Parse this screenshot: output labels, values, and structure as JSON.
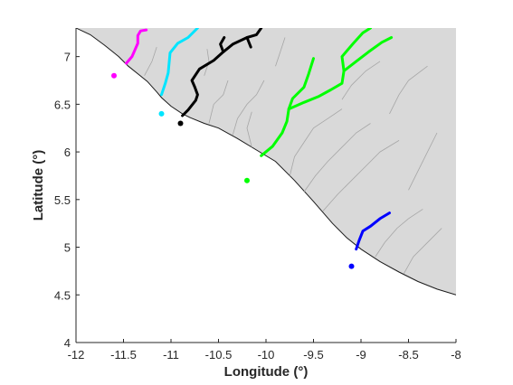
{
  "axes": {
    "xlabel": "Longitude (°)",
    "ylabel": "Latitude (°)",
    "xlim": [
      -12,
      -8
    ],
    "ylim": [
      4,
      7.3
    ],
    "xticks": [
      -12,
      -11.5,
      -11,
      -10.5,
      -10,
      -9.5,
      -9,
      -8.5,
      -8
    ],
    "xtick_labels": [
      "-12",
      "-11.5",
      "-11",
      "-10.5",
      "-10",
      "-9.5",
      "-9",
      "-8.5",
      "-8"
    ],
    "yticks": [
      4,
      4.5,
      5,
      5.5,
      6,
      6.5,
      7
    ],
    "ytick_labels": [
      "4",
      "4.5",
      "5",
      "5.5",
      "6",
      "6.5",
      "7"
    ]
  },
  "colors": {
    "land": "#d9d9d9",
    "coast": "#1a1a1a",
    "streams": "#a6a6a6",
    "magenta": "#ff00ff",
    "cyan": "#00e5ff",
    "black": "#000000",
    "green": "#00ff00",
    "blue": "#0000ff"
  },
  "chart_data": {
    "type": "map",
    "coastline": [
      [
        -12,
        7.3
      ],
      [
        -11.85,
        7.23
      ],
      [
        -11.7,
        7.12
      ],
      [
        -11.55,
        7.0
      ],
      [
        -11.45,
        6.9
      ],
      [
        -11.35,
        6.82
      ],
      [
        -11.25,
        6.74
      ],
      [
        -11.15,
        6.63
      ],
      [
        -11.1,
        6.57
      ],
      [
        -11.0,
        6.48
      ],
      [
        -10.88,
        6.4
      ],
      [
        -10.8,
        6.36
      ],
      [
        -10.65,
        6.3
      ],
      [
        -10.5,
        6.25
      ],
      [
        -10.3,
        6.14
      ],
      [
        -10.1,
        6.02
      ],
      [
        -9.9,
        5.9
      ],
      [
        -9.7,
        5.7
      ],
      [
        -9.5,
        5.48
      ],
      [
        -9.3,
        5.25
      ],
      [
        -9.15,
        5.1
      ],
      [
        -9.0,
        4.98
      ],
      [
        -8.8,
        4.85
      ],
      [
        -8.6,
        4.74
      ],
      [
        -8.4,
        4.64
      ],
      [
        -8.2,
        4.56
      ],
      [
        -8.0,
        4.5
      ]
    ],
    "rivers": [
      {
        "color": "magenta",
        "points": [
          [
            -11.47,
            6.93
          ],
          [
            -11.41,
            7.0
          ],
          [
            -11.38,
            7.07
          ],
          [
            -11.35,
            7.14
          ],
          [
            -11.35,
            7.22
          ],
          [
            -11.32,
            7.27
          ],
          [
            -11.26,
            7.28
          ]
        ]
      },
      {
        "color": "cyan",
        "points": [
          [
            -11.1,
            6.6
          ],
          [
            -11.06,
            6.72
          ],
          [
            -11.03,
            6.83
          ],
          [
            -11.02,
            6.93
          ],
          [
            -11.01,
            7.04
          ],
          [
            -10.93,
            7.14
          ],
          [
            -10.82,
            7.2
          ],
          [
            -10.72,
            7.3
          ]
        ]
      },
      {
        "color": "black",
        "points": [
          [
            -10.88,
            6.38
          ],
          [
            -10.82,
            6.44
          ],
          [
            -10.74,
            6.54
          ],
          [
            -10.72,
            6.6
          ],
          [
            -10.75,
            6.68
          ],
          [
            -10.78,
            6.75
          ],
          [
            -10.7,
            6.87
          ],
          [
            -10.55,
            6.96
          ],
          [
            -10.45,
            7.05
          ],
          [
            -10.35,
            7.13
          ],
          [
            -10.2,
            7.2
          ],
          [
            -10.1,
            7.23
          ],
          [
            -10.05,
            7.3
          ]
        ]
      },
      {
        "color": "black",
        "points": [
          [
            -10.45,
            7.05
          ],
          [
            -10.48,
            7.13
          ],
          [
            -10.44,
            7.2
          ]
        ]
      },
      {
        "color": "black",
        "points": [
          [
            -10.2,
            7.2
          ],
          [
            -10.16,
            7.1
          ]
        ]
      },
      {
        "color": "green",
        "points": [
          [
            -10.05,
            5.96
          ],
          [
            -9.93,
            6.06
          ],
          [
            -9.83,
            6.2
          ],
          [
            -9.78,
            6.32
          ],
          [
            -9.76,
            6.45
          ],
          [
            -9.72,
            6.56
          ],
          [
            -9.6,
            6.68
          ],
          [
            -9.55,
            6.82
          ],
          [
            -9.5,
            6.98
          ]
        ]
      },
      {
        "color": "green",
        "points": [
          [
            -9.76,
            6.45
          ],
          [
            -9.6,
            6.52
          ],
          [
            -9.45,
            6.58
          ],
          [
            -9.32,
            6.65
          ],
          [
            -9.2,
            6.72
          ],
          [
            -9.18,
            6.85
          ],
          [
            -9.05,
            6.95
          ],
          [
            -8.92,
            7.05
          ],
          [
            -8.78,
            7.15
          ],
          [
            -8.68,
            7.2
          ]
        ]
      },
      {
        "color": "green",
        "points": [
          [
            -9.18,
            6.85
          ],
          [
            -9.2,
            7.0
          ],
          [
            -9.08,
            7.14
          ],
          [
            -8.98,
            7.25
          ],
          [
            -8.9,
            7.3
          ]
        ]
      },
      {
        "color": "blue",
        "points": [
          [
            -9.05,
            4.98
          ],
          [
            -9.02,
            5.07
          ],
          [
            -8.98,
            5.17
          ],
          [
            -8.9,
            5.22
          ],
          [
            -8.8,
            5.3
          ],
          [
            -8.7,
            5.36
          ]
        ]
      }
    ],
    "stations": [
      {
        "color": "magenta",
        "lon": -11.6,
        "lat": 6.8
      },
      {
        "color": "cyan",
        "lon": -11.1,
        "lat": 6.4
      },
      {
        "color": "black",
        "lon": -10.9,
        "lat": 6.3
      },
      {
        "color": "green",
        "lon": -10.2,
        "lat": 5.7
      },
      {
        "color": "blue",
        "lon": -9.1,
        "lat": 4.8
      }
    ],
    "streams": [
      [
        [
          -11.28,
          6.8
        ],
        [
          -11.2,
          6.95
        ],
        [
          -11.15,
          7.1
        ]
      ],
      [
        [
          -10.6,
          6.3
        ],
        [
          -10.55,
          6.5
        ],
        [
          -10.45,
          6.6
        ],
        [
          -10.4,
          6.75
        ]
      ],
      [
        [
          -10.35,
          6.18
        ],
        [
          -10.3,
          6.35
        ],
        [
          -10.2,
          6.5
        ],
        [
          -10.1,
          6.6
        ],
        [
          -10.02,
          6.75
        ]
      ],
      [
        [
          -10.15,
          6.05
        ],
        [
          -10.2,
          6.25
        ],
        [
          -10.15,
          6.42
        ]
      ],
      [
        [
          -9.75,
          5.75
        ],
        [
          -9.7,
          5.95
        ],
        [
          -9.6,
          6.1
        ],
        [
          -9.5,
          6.25
        ],
        [
          -9.35,
          6.35
        ],
        [
          -9.2,
          6.45
        ]
      ],
      [
        [
          -9.6,
          5.58
        ],
        [
          -9.48,
          5.75
        ],
        [
          -9.35,
          5.9
        ],
        [
          -9.2,
          6.05
        ],
        [
          -9.05,
          6.2
        ],
        [
          -8.9,
          6.3
        ]
      ],
      [
        [
          -9.4,
          5.38
        ],
        [
          -9.25,
          5.55
        ],
        [
          -9.1,
          5.7
        ],
        [
          -8.95,
          5.85
        ],
        [
          -8.8,
          6.0
        ],
        [
          -8.6,
          6.12
        ]
      ],
      [
        [
          -8.85,
          4.9
        ],
        [
          -8.75,
          5.05
        ],
        [
          -8.62,
          5.2
        ],
        [
          -8.5,
          5.3
        ],
        [
          -8.35,
          5.4
        ]
      ],
      [
        [
          -8.55,
          4.72
        ],
        [
          -8.45,
          4.9
        ],
        [
          -8.3,
          5.05
        ],
        [
          -8.15,
          5.2
        ]
      ],
      [
        [
          -9.2,
          6.55
        ],
        [
          -9.1,
          6.7
        ],
        [
          -8.95,
          6.85
        ],
        [
          -8.8,
          6.95
        ]
      ],
      [
        [
          -8.7,
          6.4
        ],
        [
          -8.6,
          6.6
        ],
        [
          -8.5,
          6.75
        ],
        [
          -8.3,
          6.9
        ]
      ],
      [
        [
          -8.5,
          5.6
        ],
        [
          -8.4,
          5.8
        ],
        [
          -8.3,
          6.0
        ],
        [
          -8.2,
          6.2
        ]
      ],
      [
        [
          -9.9,
          6.9
        ],
        [
          -9.85,
          7.05
        ],
        [
          -9.8,
          7.2
        ]
      ],
      [
        [
          -10.65,
          6.8
        ],
        [
          -10.6,
          6.95
        ],
        [
          -10.62,
          7.08
        ]
      ]
    ]
  }
}
